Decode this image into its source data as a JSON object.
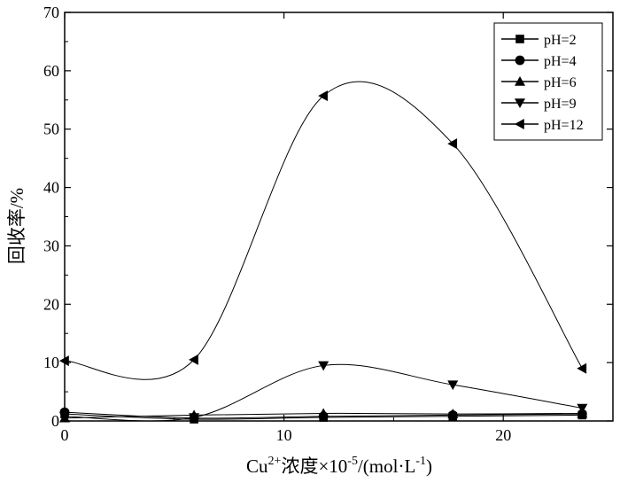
{
  "chart_data": {
    "type": "line",
    "xlabel": "Cu2+浓度×10-5/(mol·L-1)",
    "xlabel_parts": {
      "base": "Cu",
      "sup_ion": "2+",
      "mid": "浓度×10",
      "sup_exp": "-5",
      "unit_open": "/(mol·L",
      "sup_unit": "-1",
      "unit_close": ")"
    },
    "ylabel": "回收率/%",
    "xlim": [
      0,
      25
    ],
    "ylim": [
      0,
      70
    ],
    "xticks": [
      0,
      10,
      20
    ],
    "yticks": [
      0,
      10,
      20,
      30,
      40,
      50,
      60,
      70
    ],
    "grid": false,
    "legend_position": "top-right",
    "x": [
      0,
      5.9,
      11.8,
      17.7,
      23.6
    ],
    "series": [
      {
        "name": "pH=2",
        "marker": "square",
        "values": [
          1.2,
          0.3,
          0.6,
          0.8,
          1.0
        ]
      },
      {
        "name": "pH=4",
        "marker": "circle",
        "values": [
          1.5,
          0.5,
          0.8,
          1.0,
          1.2
        ]
      },
      {
        "name": "pH=6",
        "marker": "triangle-up",
        "values": [
          0.5,
          1.0,
          1.3,
          1.2,
          1.3
        ]
      },
      {
        "name": "pH=9",
        "marker": "triangle-down",
        "values": [
          0.8,
          0.6,
          9.5,
          6.2,
          2.2
        ]
      },
      {
        "name": "pH=12",
        "marker": "triangle-left",
        "values": [
          10.3,
          10.5,
          55.7,
          47.5,
          9.0
        ]
      }
    ]
  }
}
